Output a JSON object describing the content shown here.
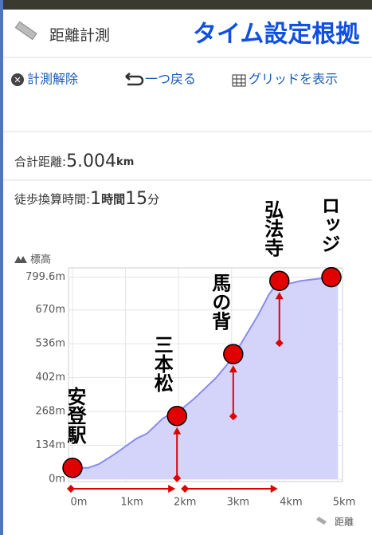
{
  "header": {
    "app_title": "距離計測",
    "overlay_title": "タイム設定根拠"
  },
  "toolbar": [
    "計測解除",
    "一つ戻る",
    "グリッドを表示"
  ],
  "summary": {
    "distance_label": "合計距離:",
    "distance_value": "5.004",
    "distance_unit": "km",
    "time_label": "徒歩換算時間:",
    "time_hours": "1",
    "time_hours_unit": "時間",
    "time_minutes": "15",
    "time_minutes_unit": "分"
  },
  "chart_data": {
    "type": "area",
    "y_label": "標高",
    "x_label": "距離",
    "color": "#8a8af0",
    "fill": "#d4d4fa",
    "x": [
      0,
      0.3,
      0.5,
      0.8,
      1.0,
      1.2,
      1.4,
      1.5,
      1.7,
      1.9,
      2.1,
      2.3,
      2.5,
      2.7,
      2.9,
      3.1,
      3.3,
      3.5,
      3.7,
      3.8,
      3.9,
      4.1,
      4.3,
      4.5,
      4.7,
      5.0
    ],
    "values": [
      45,
      45,
      60,
      100,
      130,
      160,
      180,
      200,
      240,
      265,
      285,
      320,
      360,
      400,
      450,
      510,
      580,
      650,
      730,
      760,
      770,
      775,
      785,
      790,
      795,
      799.6
    ],
    "xlim": [
      0,
      5
    ],
    "ylim": [
      0,
      830
    ],
    "xticks": [
      {
        "value": 0,
        "label": "0m"
      },
      {
        "value": 1,
        "label": "1km"
      },
      {
        "value": 2,
        "label": "2km"
      },
      {
        "value": 3,
        "label": "3km"
      },
      {
        "value": 4,
        "label": "4km"
      },
      {
        "value": 5,
        "label": "5km"
      }
    ],
    "yticks": [
      {
        "value": 0,
        "label": "0m"
      },
      {
        "value": 134,
        "label": "134m"
      },
      {
        "value": 268,
        "label": "268m"
      },
      {
        "value": 402,
        "label": "402m"
      },
      {
        "value": 536,
        "label": "536m"
      },
      {
        "value": 670,
        "label": "670m"
      },
      {
        "value": 799.6,
        "label": "799.6m"
      }
    ],
    "grid": true,
    "markers": [
      {
        "label": "安登駅",
        "x": 0,
        "y": 45
      },
      {
        "label": "三本松",
        "x": 1.97,
        "y": 250
      },
      {
        "label": "馬の背",
        "x": 3.03,
        "y": 495
      },
      {
        "label": "弘法寺",
        "x": 3.9,
        "y": 785
      },
      {
        "label": "ロッジ",
        "x": 4.88,
        "y": 799.6
      }
    ],
    "marker_color": "#e00000"
  }
}
